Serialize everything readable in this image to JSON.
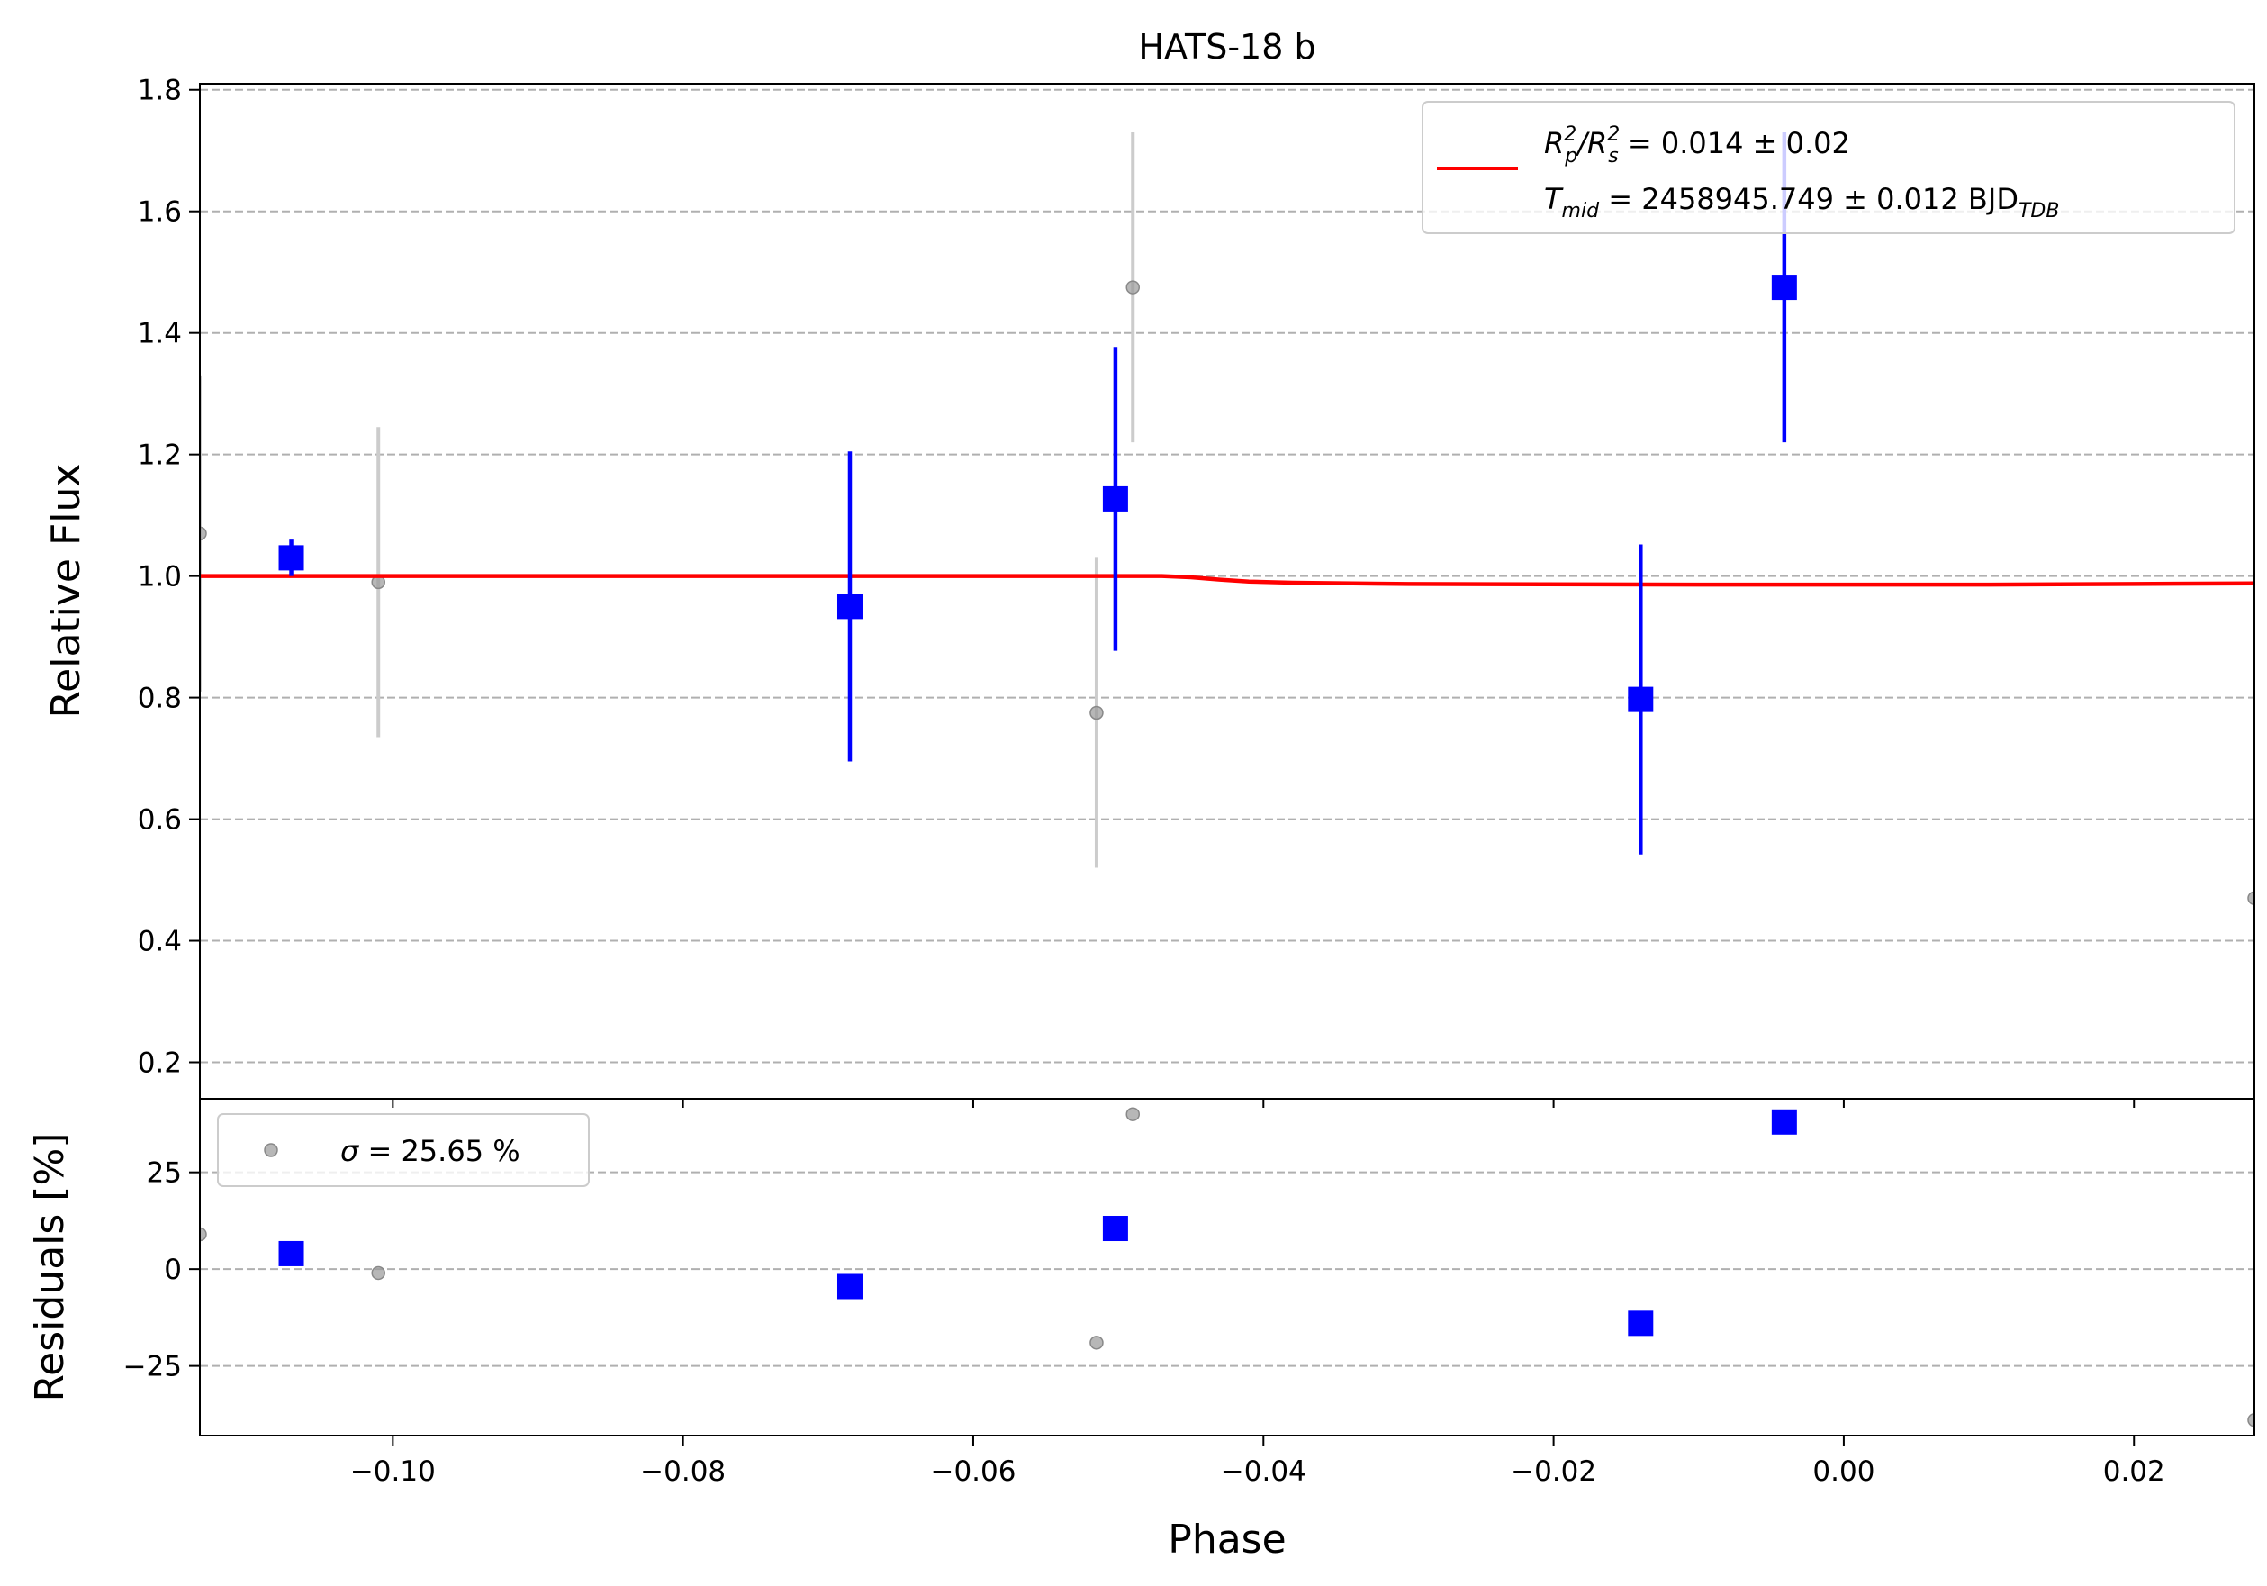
{
  "chart_data": [
    {
      "panel": "main",
      "type": "scatter",
      "title": "HATS-18 b",
      "xlabel": "",
      "ylabel": "Relative Flux",
      "xlim": [
        -0.1133,
        0.0283
      ],
      "ylim": [
        0.14,
        1.81
      ],
      "xticks": [
        -0.1,
        -0.08,
        -0.06,
        -0.04,
        -0.02,
        0.0,
        0.02
      ],
      "yticks": [
        0.2,
        0.4,
        0.6,
        0.8,
        1.0,
        1.2,
        1.4,
        1.6,
        1.8
      ],
      "ytick_labels": [
        "0.2",
        "0.4",
        "0.6",
        "0.8",
        "1.0",
        "1.2",
        "1.4",
        "1.6",
        "1.8"
      ],
      "grid": "horizontal dashed",
      "legend_position": "top-right",
      "colors": {
        "raw": "#999999",
        "raw_err": "#cccccc",
        "binned": "#0000ff",
        "model": "#ff0000",
        "grid": "#b0b0b0"
      },
      "legend": {
        "line1_prefix": "R",
        "line1_sub1": "p",
        "line1_sup1": "2",
        "line1_slash": "/R",
        "line1_sub2": "s",
        "line1_sup2": "2",
        "line1_value": " = 0.014 ± 0.02",
        "line2_prefix": "T",
        "line2_sub": "mid",
        "line2_value": " = 2458945.749 ± 0.012 BJD",
        "line2_unit_sub": "TDB"
      },
      "series": [
        {
          "kind": "raw",
          "points": [
            {
              "x": -0.1133,
              "y": 1.07,
              "err": 0.26
            },
            {
              "x": -0.101,
              "y": 0.99,
              "err": 0.255
            },
            {
              "x": -0.0515,
              "y": 0.775,
              "err": 0.255
            },
            {
              "x": -0.049,
              "y": 1.475,
              "err": 0.255
            },
            {
              "x": 0.0283,
              "y": 0.47,
              "err": 0.255
            }
          ]
        },
        {
          "kind": "binned",
          "points": [
            {
              "x": -0.107,
              "y": 1.03,
              "err": 0.03
            },
            {
              "x": -0.0685,
              "y": 0.95,
              "err": 0.255
            },
            {
              "x": -0.0502,
              "y": 1.127,
              "err": 0.25
            },
            {
              "x": -0.014,
              "y": 0.797,
              "err": 0.255
            },
            {
              "x": -0.0041,
              "y": 1.475,
              "err": 0.255
            }
          ]
        },
        {
          "kind": "model",
          "points": [
            {
              "x": -0.1133,
              "y": 1.0
            },
            {
              "x": -0.047,
              "y": 1.0
            },
            {
              "x": -0.045,
              "y": 0.998
            },
            {
              "x": -0.043,
              "y": 0.994
            },
            {
              "x": -0.041,
              "y": 0.991
            },
            {
              "x": -0.038,
              "y": 0.989
            },
            {
              "x": -0.03,
              "y": 0.987
            },
            {
              "x": -0.01,
              "y": 0.986
            },
            {
              "x": 0.01,
              "y": 0.986
            },
            {
              "x": 0.02,
              "y": 0.987
            },
            {
              "x": 0.0283,
              "y": 0.988
            }
          ]
        }
      ]
    },
    {
      "panel": "residuals",
      "type": "scatter",
      "xlabel": "Phase",
      "ylabel": "Residuals [%]",
      "xlim": [
        -0.1133,
        0.0283
      ],
      "ylim": [
        -43,
        44
      ],
      "xticks": [
        -0.1,
        -0.08,
        -0.06,
        -0.04,
        -0.02,
        0.0,
        0.02
      ],
      "xtick_labels": [
        "−0.10",
        "−0.08",
        "−0.06",
        "−0.04",
        "−0.02",
        "0.00",
        "0.02"
      ],
      "yticks": [
        -25,
        0,
        25
      ],
      "ytick_labels": [
        "−25",
        "0",
        "25"
      ],
      "grid": "horizontal dashed",
      "legend_position": "top-left",
      "legend": {
        "label_symbol": "σ",
        "label_value": " = 25.65 %"
      },
      "series": [
        {
          "kind": "raw",
          "points": [
            {
              "x": -0.1133,
              "y": 9
            },
            {
              "x": -0.101,
              "y": -1
            },
            {
              "x": -0.0515,
              "y": -19
            },
            {
              "x": -0.049,
              "y": 40
            },
            {
              "x": 0.0283,
              "y": -39
            }
          ]
        },
        {
          "kind": "binned",
          "points": [
            {
              "x": -0.107,
              "y": 4
            },
            {
              "x": -0.0685,
              "y": -4.5
            },
            {
              "x": -0.0502,
              "y": 10.5
            },
            {
              "x": -0.014,
              "y": -14
            },
            {
              "x": -0.0041,
              "y": 38
            }
          ]
        }
      ]
    }
  ]
}
